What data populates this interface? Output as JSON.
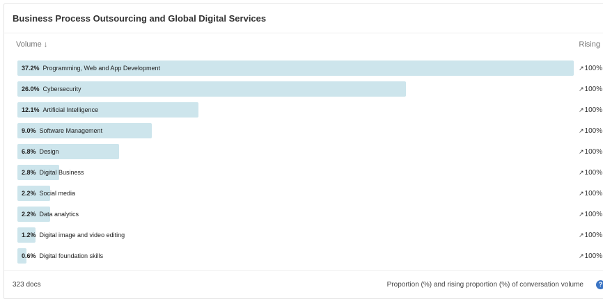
{
  "card": {
    "title": "Business Process Outsourcing and Global Digital Services",
    "volume_label": "Volume ↓",
    "rising_label": "Rising"
  },
  "rows": [
    {
      "pct": "37.2%",
      "name": "Programming, Web and App Development",
      "value": 37.2,
      "rising": "100%"
    },
    {
      "pct": "26.0%",
      "name": "Cybersecurity",
      "value": 26.0,
      "rising": "100%"
    },
    {
      "pct": "12.1%",
      "name": "Artificial Intelligence",
      "value": 12.1,
      "rising": "100%"
    },
    {
      "pct": "9.0%",
      "name": "Software Management",
      "value": 9.0,
      "rising": "100%"
    },
    {
      "pct": "6.8%",
      "name": "Design",
      "value": 6.8,
      "rising": "100%"
    },
    {
      "pct": "2.8%",
      "name": "Digital Business",
      "value": 2.8,
      "rising": "100%"
    },
    {
      "pct": "2.2%",
      "name": "Social media",
      "value": 2.2,
      "rising": "100%"
    },
    {
      "pct": "2.2%",
      "name": "Data analytics",
      "value": 2.2,
      "rising": "100%"
    },
    {
      "pct": "1.2%",
      "name": "Digital image and video editing",
      "value": 1.2,
      "rising": "100%"
    },
    {
      "pct": "0.6%",
      "name": "Digital foundation skills",
      "value": 0.6,
      "rising": "100%"
    }
  ],
  "footer": {
    "docs": "323 docs",
    "note": "Proportion (%) and rising proportion (%) of conversation volume",
    "help_icon": "question-circle-icon"
  },
  "colors": {
    "bar": "#cde5ec",
    "help": "#3a74c4"
  }
}
